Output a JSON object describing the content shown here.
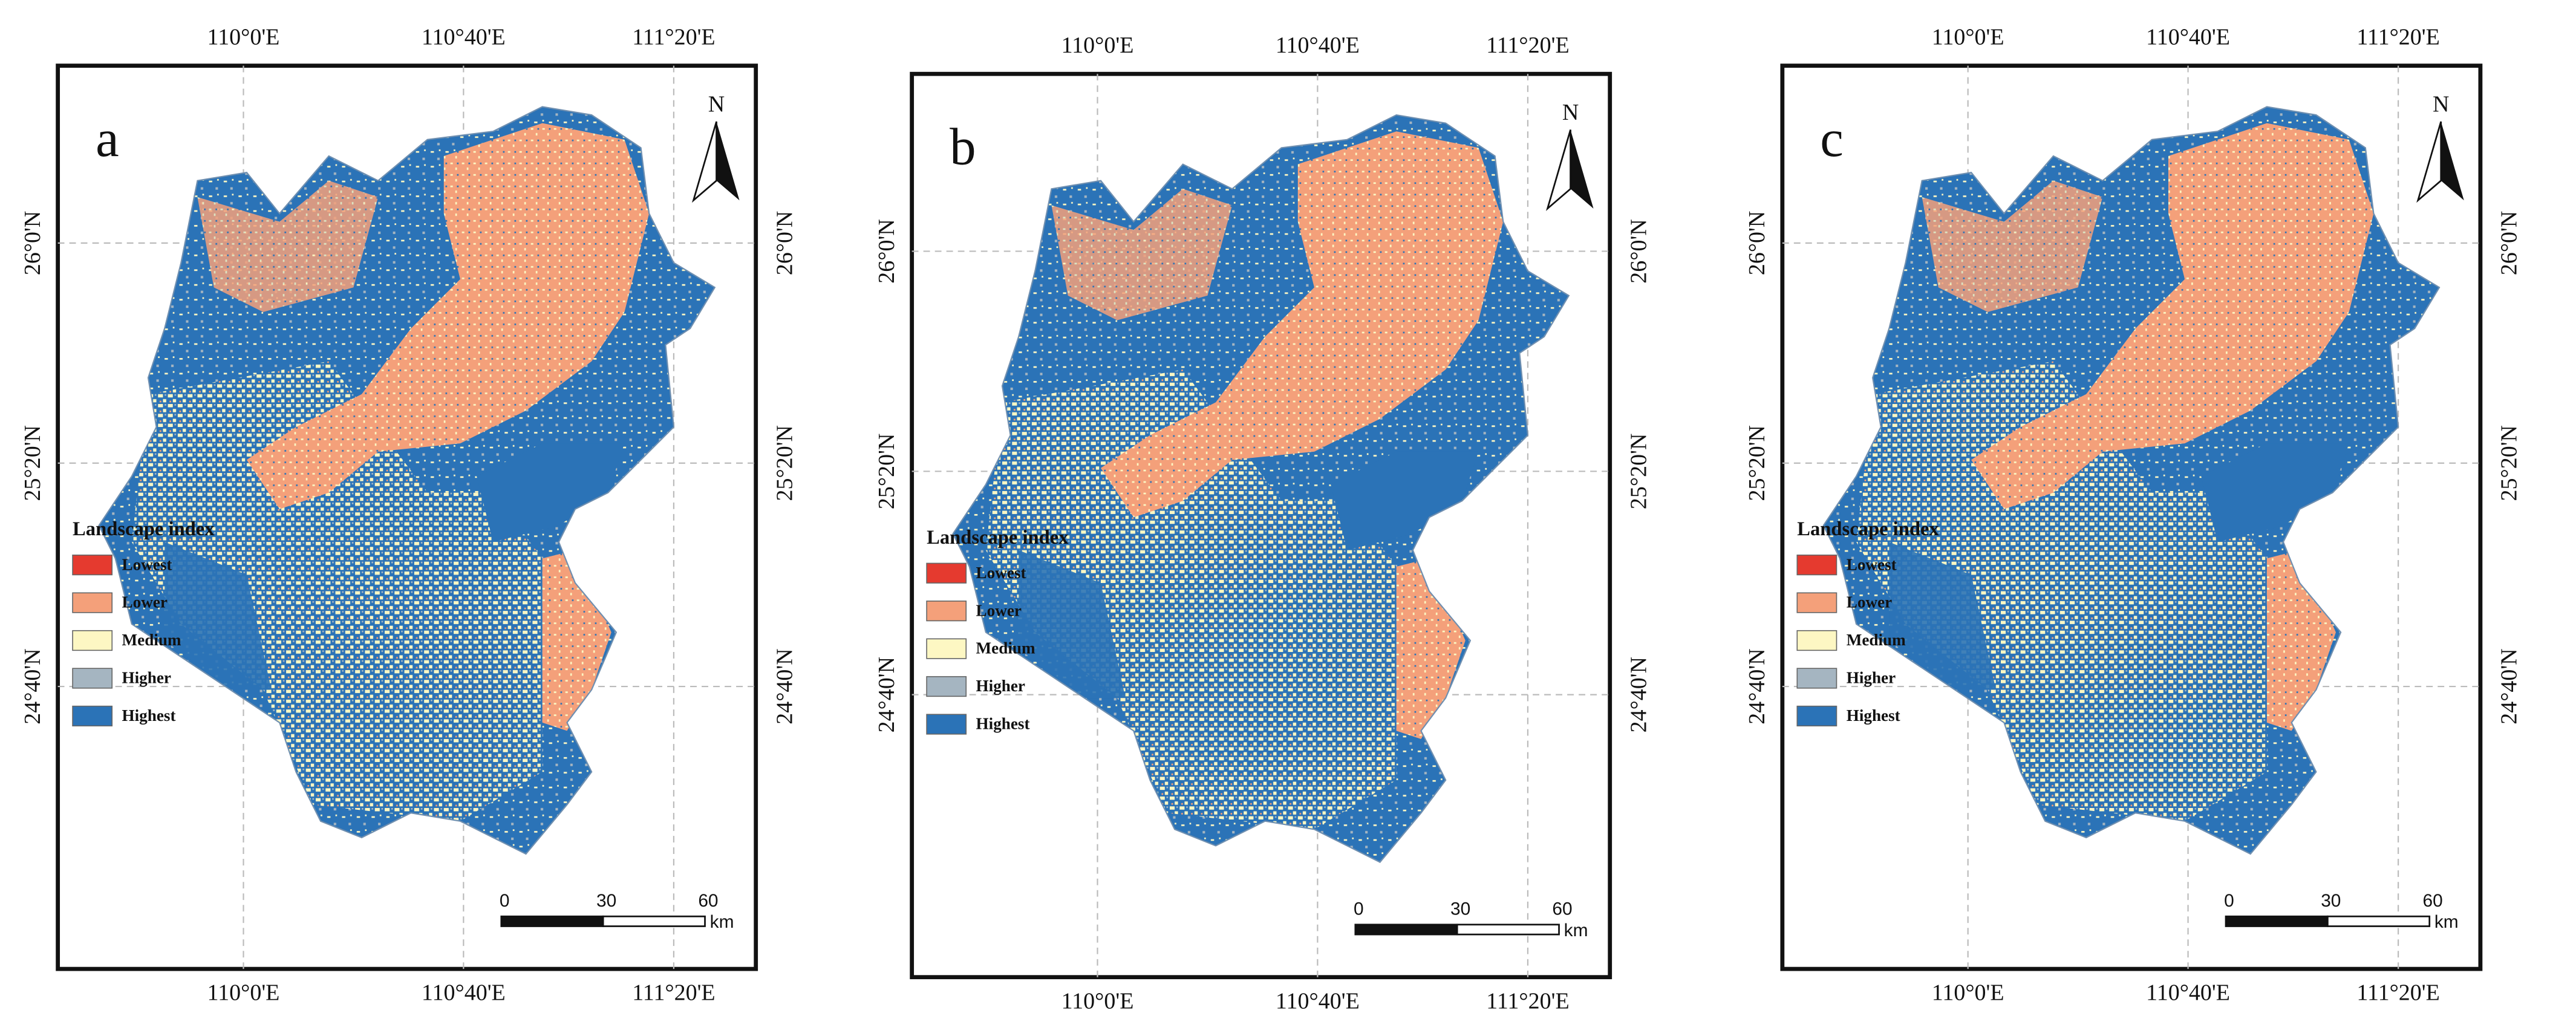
{
  "panels": [
    {
      "label": "a"
    },
    {
      "label": "b"
    },
    {
      "label": "c"
    }
  ],
  "longitude_labels": [
    "110°0'E",
    "110°40'E",
    "111°20'E"
  ],
  "latitude_labels": [
    "26°0'N",
    "25°20'N",
    "24°40'N"
  ],
  "north": "N",
  "legend": {
    "title": "Landscape index",
    "items": [
      {
        "label": "Lowest",
        "color": "#e53a2f"
      },
      {
        "label": "Lower",
        "color": "#f4a07a"
      },
      {
        "label": "Medium",
        "color": "#fdf7c3"
      },
      {
        "label": "Higher",
        "color": "#a5b5c1"
      },
      {
        "label": "Highest",
        "color": "#2b73b7"
      }
    ]
  },
  "scale_bar": {
    "ticks": [
      0,
      30,
      60
    ],
    "unit": "km"
  }
}
